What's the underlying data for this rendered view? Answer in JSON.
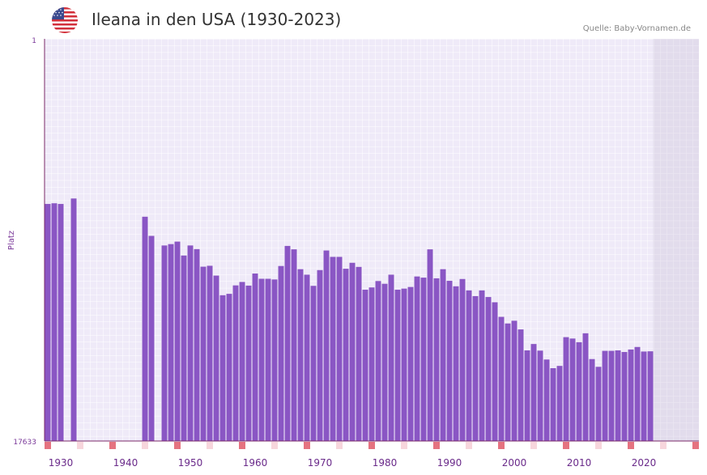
{
  "header": {
    "title": "Ileana in den USA (1930-2023)",
    "source": "Quelle: Baby-Vornamen.de",
    "flag_icon": "usa-flag-icon"
  },
  "colors": {
    "bar": "#8a56c4",
    "grid_bg": "#efeaf8",
    "shade": "#e2dcec",
    "axis": "#7b2a6a",
    "marker_strong": "#e57380",
    "marker_light": "#f7d6dc"
  },
  "chart_data": {
    "type": "bar",
    "title": "Ileana in den USA (1930-2023)",
    "xlabel": "",
    "ylabel": "Platz",
    "y_axis_reversed": true,
    "ylim": [
      1,
      17633
    ],
    "ytick_labels": [
      "1",
      "17633"
    ],
    "xlim": [
      1928,
      2028
    ],
    "xtick_labels": [
      "1930",
      "1940",
      "1950",
      "1960",
      "1970",
      "1980",
      "1990",
      "2000",
      "2010",
      "2020"
    ],
    "series": [
      {
        "name": "Ileana",
        "x": [
          1928,
          1929,
          1930,
          1932,
          1943,
          1944,
          1946,
          1947,
          1948,
          1949,
          1950,
          1951,
          1952,
          1953,
          1954,
          1955,
          1956,
          1957,
          1958,
          1959,
          1960,
          1961,
          1962,
          1963,
          1964,
          1965,
          1966,
          1967,
          1968,
          1969,
          1970,
          1971,
          1972,
          1973,
          1974,
          1975,
          1976,
          1977,
          1978,
          1979,
          1980,
          1981,
          1982,
          1983,
          1984,
          1985,
          1986,
          1987,
          1988,
          1989,
          1990,
          1991,
          1992,
          1993,
          1994,
          1995,
          1996,
          1997,
          1998,
          1999,
          2000,
          2001,
          2002,
          2003,
          2004,
          2005,
          2006,
          2007,
          2008,
          2009,
          2010,
          2011,
          2012,
          2013,
          2014,
          2015,
          2016,
          2017,
          2018,
          2019,
          2020,
          2021
        ],
        "values": [
          7240,
          7210,
          7240,
          7000,
          7800,
          8640,
          9060,
          9000,
          8890,
          9500,
          9060,
          9220,
          9990,
          9950,
          10380,
          11240,
          11180,
          10810,
          10660,
          10820,
          10290,
          10520,
          10520,
          10550,
          9960,
          9080,
          9230,
          10100,
          10340,
          10830,
          10140,
          9280,
          9560,
          9560,
          10080,
          9820,
          10000,
          11000,
          10900,
          10620,
          10740,
          10340,
          11000,
          10950,
          10880,
          10420,
          10470,
          9230,
          10500,
          10100,
          10610,
          10850,
          10530,
          11030,
          11280,
          11030,
          11320,
          11550,
          12190,
          12480,
          12360,
          12740,
          13660,
          13380,
          13670,
          14060,
          14440,
          14340,
          13080,
          13140,
          13300,
          12910,
          14040,
          14380,
          13680,
          13680,
          13660,
          13730,
          13620,
          13510,
          13710,
          13700
        ]
      }
    ],
    "decade_markers_strong": [
      1928,
      1938,
      1948,
      1958,
      1968,
      1978,
      1988,
      1998,
      2008,
      2018,
      2028
    ],
    "decade_markers_light": [
      1933,
      1943,
      1953,
      1963,
      1973,
      1983,
      1993,
      2003,
      2013,
      2023
    ]
  }
}
